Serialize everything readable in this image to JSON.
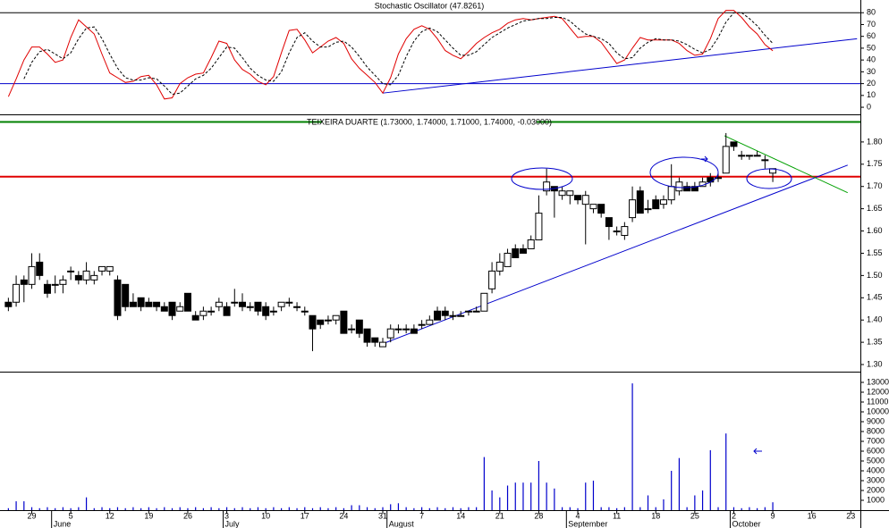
{
  "chart_data": [
    {
      "type": "line",
      "title": "Stochastic Oscillator (47.8261)",
      "ylim": [
        -6,
        90
      ],
      "yticks": [
        0,
        10,
        20,
        30,
        40,
        50,
        60,
        70,
        80
      ],
      "hlines": [
        {
          "value": 80,
          "color": "#000000"
        },
        {
          "value": 20,
          "color": "#0000cc"
        }
      ],
      "series": [
        {
          "color": "#e00000",
          "style": "solid",
          "values": [
            9,
            24,
            40,
            51,
            51,
            45,
            38,
            40,
            59,
            74,
            68,
            62,
            45,
            29,
            25,
            21,
            22,
            26,
            27,
            19,
            7,
            8,
            20,
            25,
            28,
            29,
            42,
            56,
            54,
            40,
            32,
            28,
            22,
            19,
            26,
            46,
            65,
            66,
            57,
            46,
            51,
            56,
            59,
            54,
            41,
            33,
            27,
            21,
            12,
            25,
            45,
            58,
            66,
            69,
            66,
            58,
            48,
            44,
            41,
            47,
            54,
            59,
            63,
            66,
            71,
            74,
            75,
            74,
            75,
            76,
            77,
            75,
            67,
            59,
            60,
            60,
            55,
            46,
            37,
            40,
            50,
            59,
            57,
            57,
            57,
            57,
            54,
            48,
            44,
            45,
            58,
            75,
            82,
            82,
            76,
            68,
            62,
            53,
            47.8261
          ]
        },
        {
          "color": "#000000",
          "style": "dashed",
          "values": [
            null,
            null,
            24,
            38,
            47,
            49,
            45,
            41,
            46,
            58,
            67,
            68,
            58,
            45,
            33,
            25,
            23,
            23,
            25,
            24,
            18,
            11,
            12,
            18,
            24,
            27,
            33,
            42,
            51,
            50,
            42,
            33,
            27,
            23,
            22,
            30,
            46,
            59,
            63,
            56,
            51,
            51,
            55,
            56,
            51,
            43,
            34,
            27,
            20,
            19,
            27,
            43,
            56,
            64,
            67,
            64,
            57,
            50,
            44,
            44,
            47,
            53,
            59,
            63,
            67,
            70,
            73,
            74,
            75,
            75,
            76,
            76,
            73,
            67,
            62,
            60,
            58,
            54,
            46,
            41,
            42,
            50,
            55,
            58,
            57,
            57,
            56,
            53,
            49,
            46,
            49,
            59,
            72,
            80,
            80,
            75,
            69,
            61,
            54
          ]
        }
      ],
      "trendlines": [
        {
          "x": [
            48,
            108.8
          ],
          "y": [
            12,
            58
          ],
          "color": "#0000cc"
        }
      ]
    },
    {
      "type": "candlestick",
      "title": "TEIXEIRA DUARTE (1.73000, 1.74000, 1.71000, 1.74000, -0.03000)",
      "ylim": [
        1.284,
        1.858
      ],
      "yticks": [
        {
          "value": 1.3,
          "label": "1.30"
        },
        {
          "value": 1.35,
          "label": "1.35"
        },
        {
          "value": 1.4,
          "label": "1.40"
        },
        {
          "value": 1.45,
          "label": "1.45"
        },
        {
          "value": 1.5,
          "label": "1.50"
        },
        {
          "value": 1.55,
          "label": "1.55"
        },
        {
          "value": 1.6,
          "label": "1.60"
        },
        {
          "value": 1.65,
          "label": "1.65"
        },
        {
          "value": 1.7,
          "label": "1.70"
        },
        {
          "value": 1.75,
          "label": "1.75"
        },
        {
          "value": 1.8,
          "label": "1.80"
        }
      ],
      "hlines": [
        {
          "value": 1.845,
          "color": "#008000"
        },
        {
          "value": 1.722,
          "color": "#e00000"
        }
      ],
      "open": [
        1.44,
        1.44,
        1.49,
        1.48,
        1.53,
        1.48,
        1.48,
        1.48,
        1.51,
        1.5,
        1.49,
        1.49,
        1.51,
        1.51,
        1.49,
        1.48,
        1.44,
        1.45,
        1.44,
        1.44,
        1.43,
        1.44,
        1.42,
        1.46,
        1.41,
        1.41,
        1.42,
        1.43,
        1.43,
        1.44,
        1.44,
        1.43,
        1.44,
        1.43,
        1.42,
        1.43,
        1.44,
        1.43,
        1.42,
        1.41,
        1.4,
        1.4,
        1.4,
        1.42,
        1.38,
        1.4,
        1.38,
        1.36,
        1.34,
        1.36,
        1.38,
        1.38,
        1.38,
        1.39,
        1.39,
        1.42,
        1.42,
        1.41,
        1.41,
        1.42,
        1.42,
        1.42,
        1.47,
        1.51,
        1.52,
        1.56,
        1.56,
        1.56,
        1.58,
        1.69,
        1.7,
        1.68,
        1.68,
        1.68,
        1.66,
        1.65,
        1.66,
        1.63,
        1.6,
        1.59,
        1.63,
        1.69,
        1.65,
        1.67,
        1.66,
        1.67,
        1.69,
        1.7,
        1.7,
        1.7,
        1.72,
        1.72,
        1.73,
        1.8,
        1.77,
        1.77,
        1.77,
        1.76,
        1.73
      ],
      "high": [
        1.45,
        1.5,
        1.5,
        1.55,
        1.55,
        1.49,
        1.5,
        1.5,
        1.52,
        1.51,
        1.53,
        1.51,
        1.52,
        1.52,
        1.5,
        1.48,
        1.46,
        1.45,
        1.45,
        1.44,
        1.44,
        1.44,
        1.44,
        1.46,
        1.42,
        1.43,
        1.43,
        1.45,
        1.44,
        1.47,
        1.46,
        1.44,
        1.44,
        1.44,
        1.43,
        1.44,
        1.45,
        1.44,
        1.43,
        1.41,
        1.4,
        1.41,
        1.41,
        1.42,
        1.39,
        1.4,
        1.38,
        1.36,
        1.36,
        1.39,
        1.39,
        1.39,
        1.39,
        1.4,
        1.41,
        1.43,
        1.43,
        1.42,
        1.42,
        1.42,
        1.43,
        1.46,
        1.53,
        1.55,
        1.56,
        1.57,
        1.57,
        1.59,
        1.68,
        1.74,
        1.7,
        1.7,
        1.69,
        1.68,
        1.69,
        1.66,
        1.66,
        1.63,
        1.61,
        1.62,
        1.7,
        1.7,
        1.67,
        1.68,
        1.68,
        1.75,
        1.72,
        1.71,
        1.71,
        1.72,
        1.73,
        1.73,
        1.82,
        1.8,
        1.78,
        1.77,
        1.78,
        1.77,
        1.74
      ],
      "low": [
        1.42,
        1.43,
        1.44,
        1.47,
        1.49,
        1.45,
        1.46,
        1.46,
        1.49,
        1.48,
        1.48,
        1.48,
        1.5,
        1.5,
        1.4,
        1.42,
        1.43,
        1.42,
        1.43,
        1.42,
        1.42,
        1.4,
        1.42,
        1.42,
        1.4,
        1.4,
        1.41,
        1.42,
        1.41,
        1.43,
        1.42,
        1.42,
        1.41,
        1.4,
        1.41,
        1.42,
        1.43,
        1.42,
        1.41,
        1.33,
        1.38,
        1.39,
        1.39,
        1.37,
        1.37,
        1.36,
        1.34,
        1.34,
        1.34,
        1.35,
        1.37,
        1.37,
        1.37,
        1.38,
        1.39,
        1.4,
        1.4,
        1.4,
        1.41,
        1.41,
        1.42,
        1.42,
        1.46,
        1.5,
        1.52,
        1.54,
        1.55,
        1.56,
        1.58,
        1.68,
        1.63,
        1.67,
        1.66,
        1.66,
        1.57,
        1.64,
        1.63,
        1.58,
        1.59,
        1.58,
        1.62,
        1.64,
        1.64,
        1.65,
        1.65,
        1.66,
        1.68,
        1.69,
        1.69,
        1.7,
        1.7,
        1.71,
        1.73,
        1.78,
        1.76,
        1.76,
        1.77,
        1.74,
        1.71
      ],
      "close": [
        1.43,
        1.48,
        1.48,
        1.52,
        1.5,
        1.46,
        1.48,
        1.49,
        1.51,
        1.49,
        1.51,
        1.5,
        1.52,
        1.52,
        1.41,
        1.43,
        1.43,
        1.43,
        1.43,
        1.43,
        1.42,
        1.41,
        1.43,
        1.42,
        1.4,
        1.42,
        1.42,
        1.44,
        1.41,
        1.44,
        1.43,
        1.43,
        1.42,
        1.41,
        1.42,
        1.44,
        1.44,
        1.43,
        1.42,
        1.38,
        1.39,
        1.4,
        1.41,
        1.37,
        1.38,
        1.37,
        1.35,
        1.35,
        1.35,
        1.38,
        1.38,
        1.38,
        1.37,
        1.39,
        1.4,
        1.4,
        1.41,
        1.41,
        1.41,
        1.42,
        1.42,
        1.46,
        1.51,
        1.53,
        1.55,
        1.54,
        1.55,
        1.58,
        1.64,
        1.71,
        1.69,
        1.69,
        1.69,
        1.67,
        1.68,
        1.66,
        1.64,
        1.61,
        1.6,
        1.61,
        1.67,
        1.64,
        1.65,
        1.65,
        1.67,
        1.7,
        1.71,
        1.69,
        1.69,
        1.71,
        1.71,
        1.72,
        1.79,
        1.79,
        1.77,
        1.77,
        1.77,
        1.76,
        1.74
      ],
      "trendlines": [
        {
          "x": [
            47.9,
            107.6
          ],
          "y": [
            1.346,
            1.748
          ],
          "color": "#0000cc"
        },
        {
          "x": [
            91.8,
            107.6
          ],
          "y": [
            1.814,
            1.686
          ],
          "color": "#00a000"
        }
      ]
    },
    {
      "type": "bar",
      "color": "#0000cc",
      "ylim": [
        0,
        14000
      ],
      "yticks": [
        1000,
        2000,
        3000,
        4000,
        5000,
        6000,
        7000,
        8000,
        9000,
        10000,
        11000,
        12000,
        13000
      ],
      "values": [
        200,
        900,
        900,
        300,
        200,
        300,
        200,
        300,
        200,
        300,
        1300,
        200,
        300,
        200,
        300,
        200,
        300,
        200,
        300,
        200,
        300,
        200,
        300,
        200,
        300,
        200,
        300,
        200,
        300,
        200,
        300,
        200,
        300,
        200,
        300,
        200,
        300,
        200,
        300,
        200,
        300,
        200,
        300,
        200,
        500,
        500,
        300,
        200,
        300,
        600,
        700,
        300,
        200,
        300,
        200,
        300,
        200,
        300,
        200,
        300,
        300,
        5400,
        2000,
        1300,
        2500,
        2800,
        2800,
        2800,
        5000,
        2800,
        2200,
        300,
        300,
        200,
        2800,
        3000,
        300,
        300,
        200,
        300,
        12900,
        300,
        1500,
        300,
        1100,
        4000,
        5300,
        300,
        1500,
        2000,
        6100,
        300,
        7800,
        300,
        200,
        300,
        200,
        300,
        800
      ],
      "xlim": [
        -0.5,
        109
      ],
      "xticks": [
        {
          "value": 3,
          "label": "29"
        },
        {
          "value": 8,
          "label": "5"
        },
        {
          "value": 13,
          "label": "12"
        },
        {
          "value": 18,
          "label": "19"
        },
        {
          "value": 23,
          "label": "26"
        },
        {
          "value": 28,
          "label": "3"
        },
        {
          "value": 33,
          "label": "10"
        },
        {
          "value": 38,
          "label": "17"
        },
        {
          "value": 43,
          "label": "24"
        },
        {
          "value": 48,
          "label": "31"
        },
        {
          "value": 53,
          "label": "7"
        },
        {
          "value": 58,
          "label": "14"
        },
        {
          "value": 63,
          "label": "21"
        },
        {
          "value": 68,
          "label": "28"
        },
        {
          "value": 73,
          "label": "4"
        },
        {
          "value": 78,
          "label": "11"
        },
        {
          "value": 83,
          "label": "18"
        },
        {
          "value": 88,
          "label": "25"
        },
        {
          "value": 93,
          "label": "2"
        },
        {
          "value": 98,
          "label": "9"
        },
        {
          "value": 103,
          "label": "16"
        },
        {
          "value": 108,
          "label": "23"
        }
      ],
      "month_ticks": [
        {
          "value": 6,
          "label": "June"
        },
        {
          "value": 28,
          "label": "July"
        },
        {
          "value": 49,
          "label": "August"
        },
        {
          "value": 72,
          "label": "September"
        },
        {
          "value": 93,
          "label": "October"
        }
      ]
    }
  ]
}
